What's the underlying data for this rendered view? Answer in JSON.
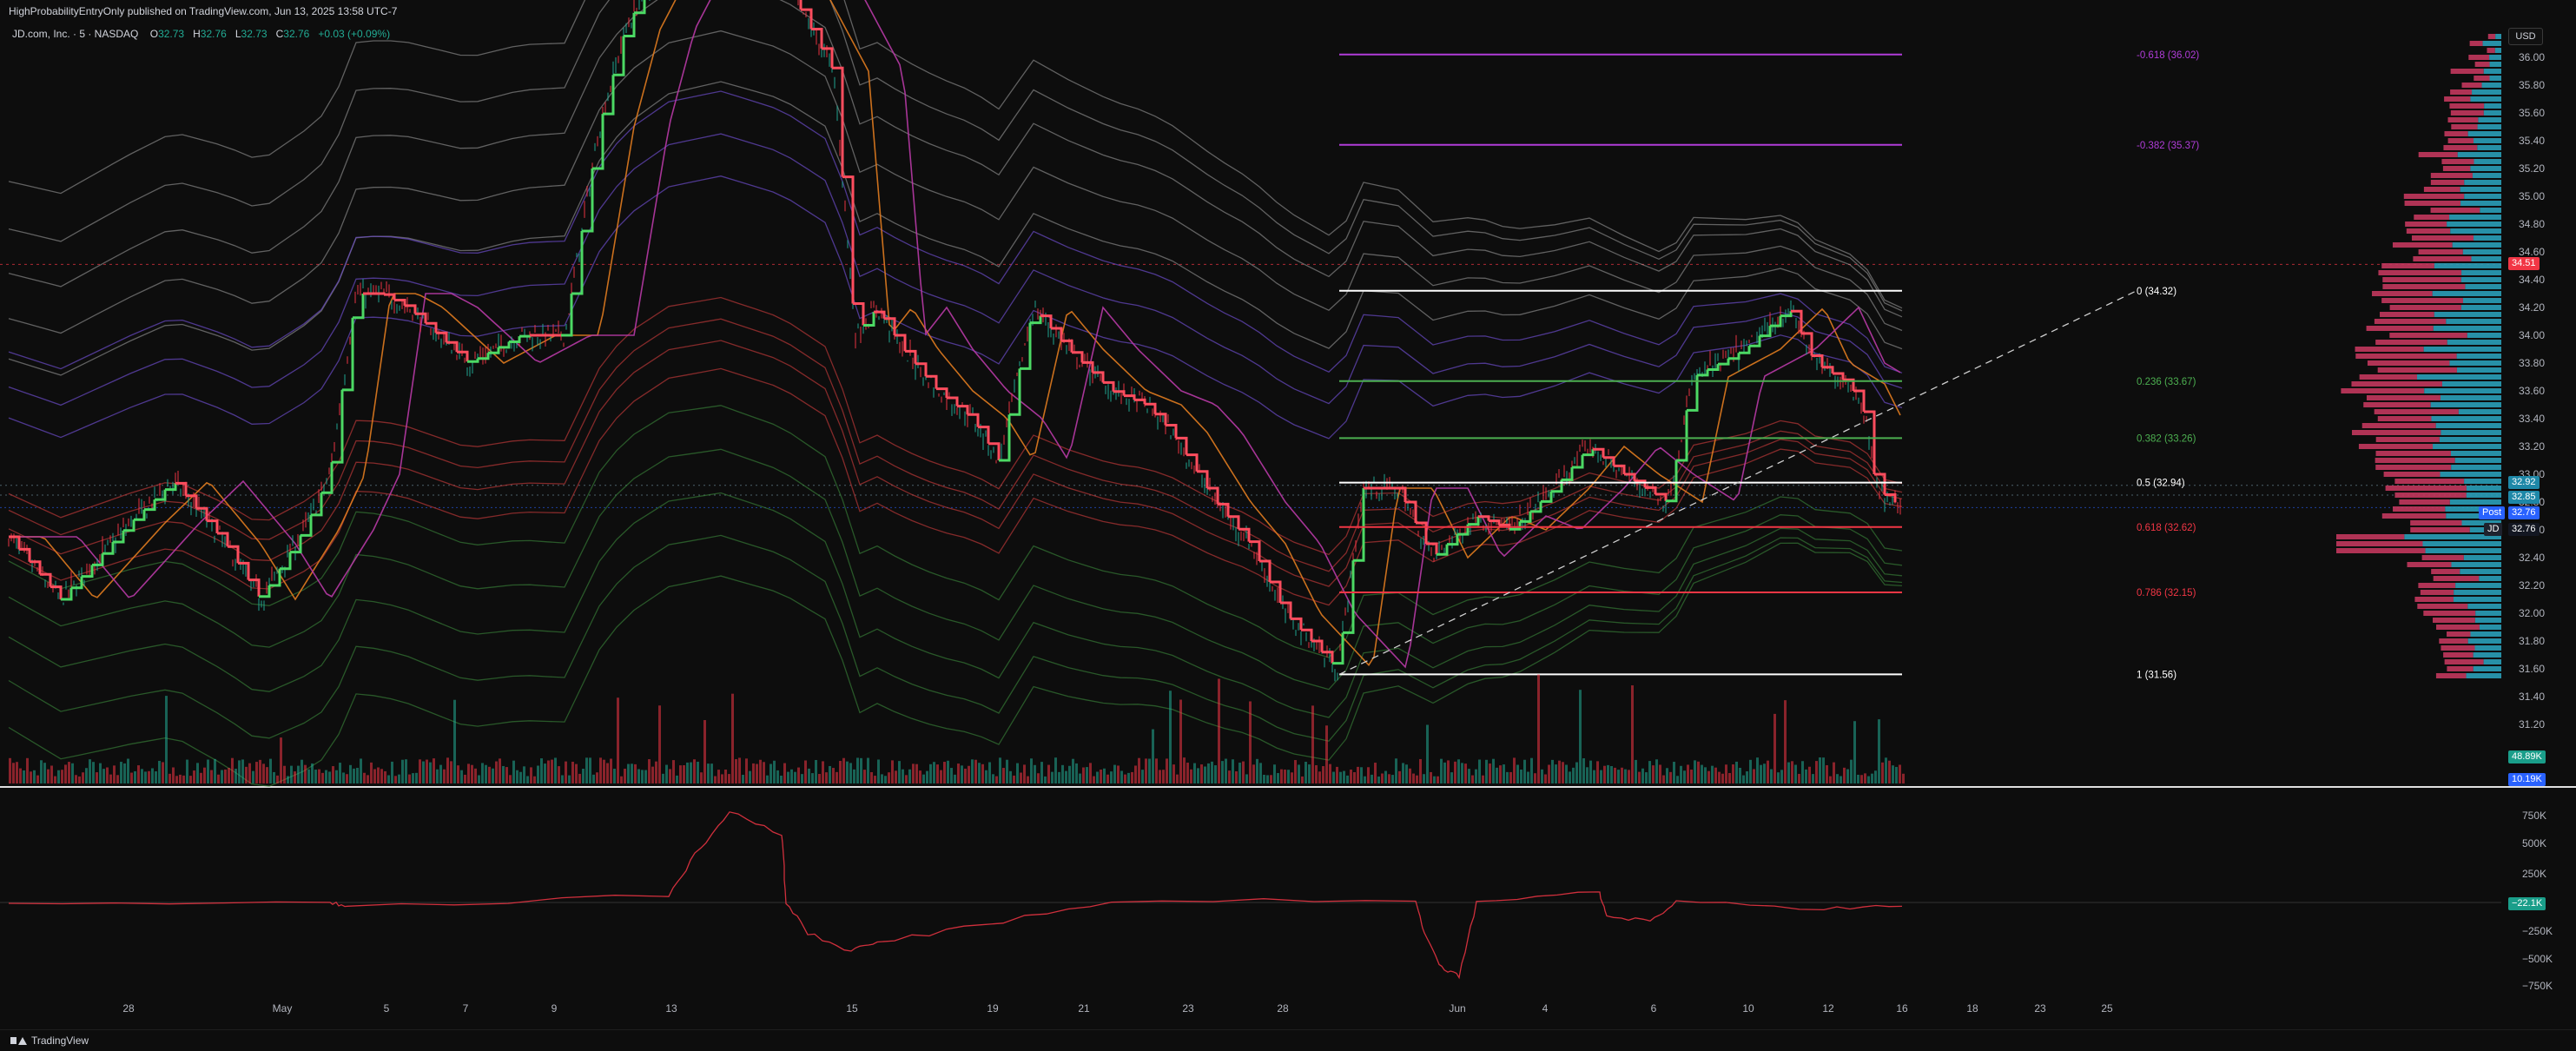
{
  "header": {
    "published": "HighProbabilityEntryOnly published on TradingView.com, Jun 13, 2025 13:58 UTC-7"
  },
  "legend": {
    "symbol": "JD.com, Inc. · 5 · NASDAQ",
    "o_label": "O",
    "o": "32.73",
    "h_label": "H",
    "h": "32.76",
    "l_label": "L",
    "l": "32.73",
    "c_label": "C",
    "c": "32.76",
    "change": "+0.03 (+0.09%)"
  },
  "currency": "USD",
  "price_axis": {
    "ticks": [
      "36.00",
      "35.80",
      "35.60",
      "35.40",
      "35.20",
      "35.00",
      "34.80",
      "34.60",
      "34.40",
      "34.20",
      "34.00",
      "33.80",
      "33.60",
      "33.40",
      "33.20",
      "33.00",
      "32.80",
      "32.60",
      "32.40",
      "32.20",
      "32.00",
      "31.80",
      "31.60",
      "31.40",
      "31.20"
    ],
    "tags": {
      "alert_price": "34.51",
      "level_a": "32.92",
      "level_b": "32.85",
      "post_label": "Post",
      "post_price": "32.76",
      "symbol_label": "JD",
      "last_price": "32.76",
      "volume_a": "48.89K",
      "volume_b": "10.19K"
    }
  },
  "indicator_axis": {
    "ticks": [
      "750K",
      "500K",
      "250K",
      "0",
      "−250K",
      "−500K",
      "−750K"
    ],
    "current": "−22.1K"
  },
  "time_axis": {
    "ticks": [
      "28",
      "May",
      "5",
      "7",
      "9",
      "13",
      "15",
      "19",
      "21",
      "23",
      "28",
      "Jun",
      "4",
      "6",
      "10",
      "12",
      "16",
      "18",
      "23",
      "25"
    ]
  },
  "fib_levels": [
    {
      "label": "-0.618 (36.02)",
      "price": 36.02,
      "color": "#b03cd8"
    },
    {
      "label": "-0.382 (35.37)",
      "price": 35.37,
      "color": "#b03cd8"
    },
    {
      "label": "0 (34.32)",
      "price": 34.32,
      "color": "#ffffff"
    },
    {
      "label": "0.236 (33.67)",
      "price": 33.67,
      "color": "#4caf50"
    },
    {
      "label": "0.382 (33.26)",
      "price": 33.26,
      "color": "#4caf50"
    },
    {
      "label": "0.5 (32.94)",
      "price": 32.94,
      "color": "#ffffff"
    },
    {
      "label": "0.618 (32.62)",
      "price": 32.62,
      "color": "#f23645"
    },
    {
      "label": "0.786 (32.15)",
      "price": 32.15,
      "color": "#f23645"
    },
    {
      "label": "1 (31.56)",
      "price": 31.56,
      "color": "#ffffff"
    }
  ],
  "footer": {
    "brand": "TradingView"
  },
  "colors": {
    "bg": "#0d0d0d",
    "up": "#22ab94",
    "down": "#f23645",
    "trend_up": "#4cd964",
    "trend_down": "#ff4d5e",
    "profile_teal": "#2a9fb8",
    "profile_pink": "#c2375d"
  },
  "icons": [
    "tradingview-logo-icon"
  ]
}
